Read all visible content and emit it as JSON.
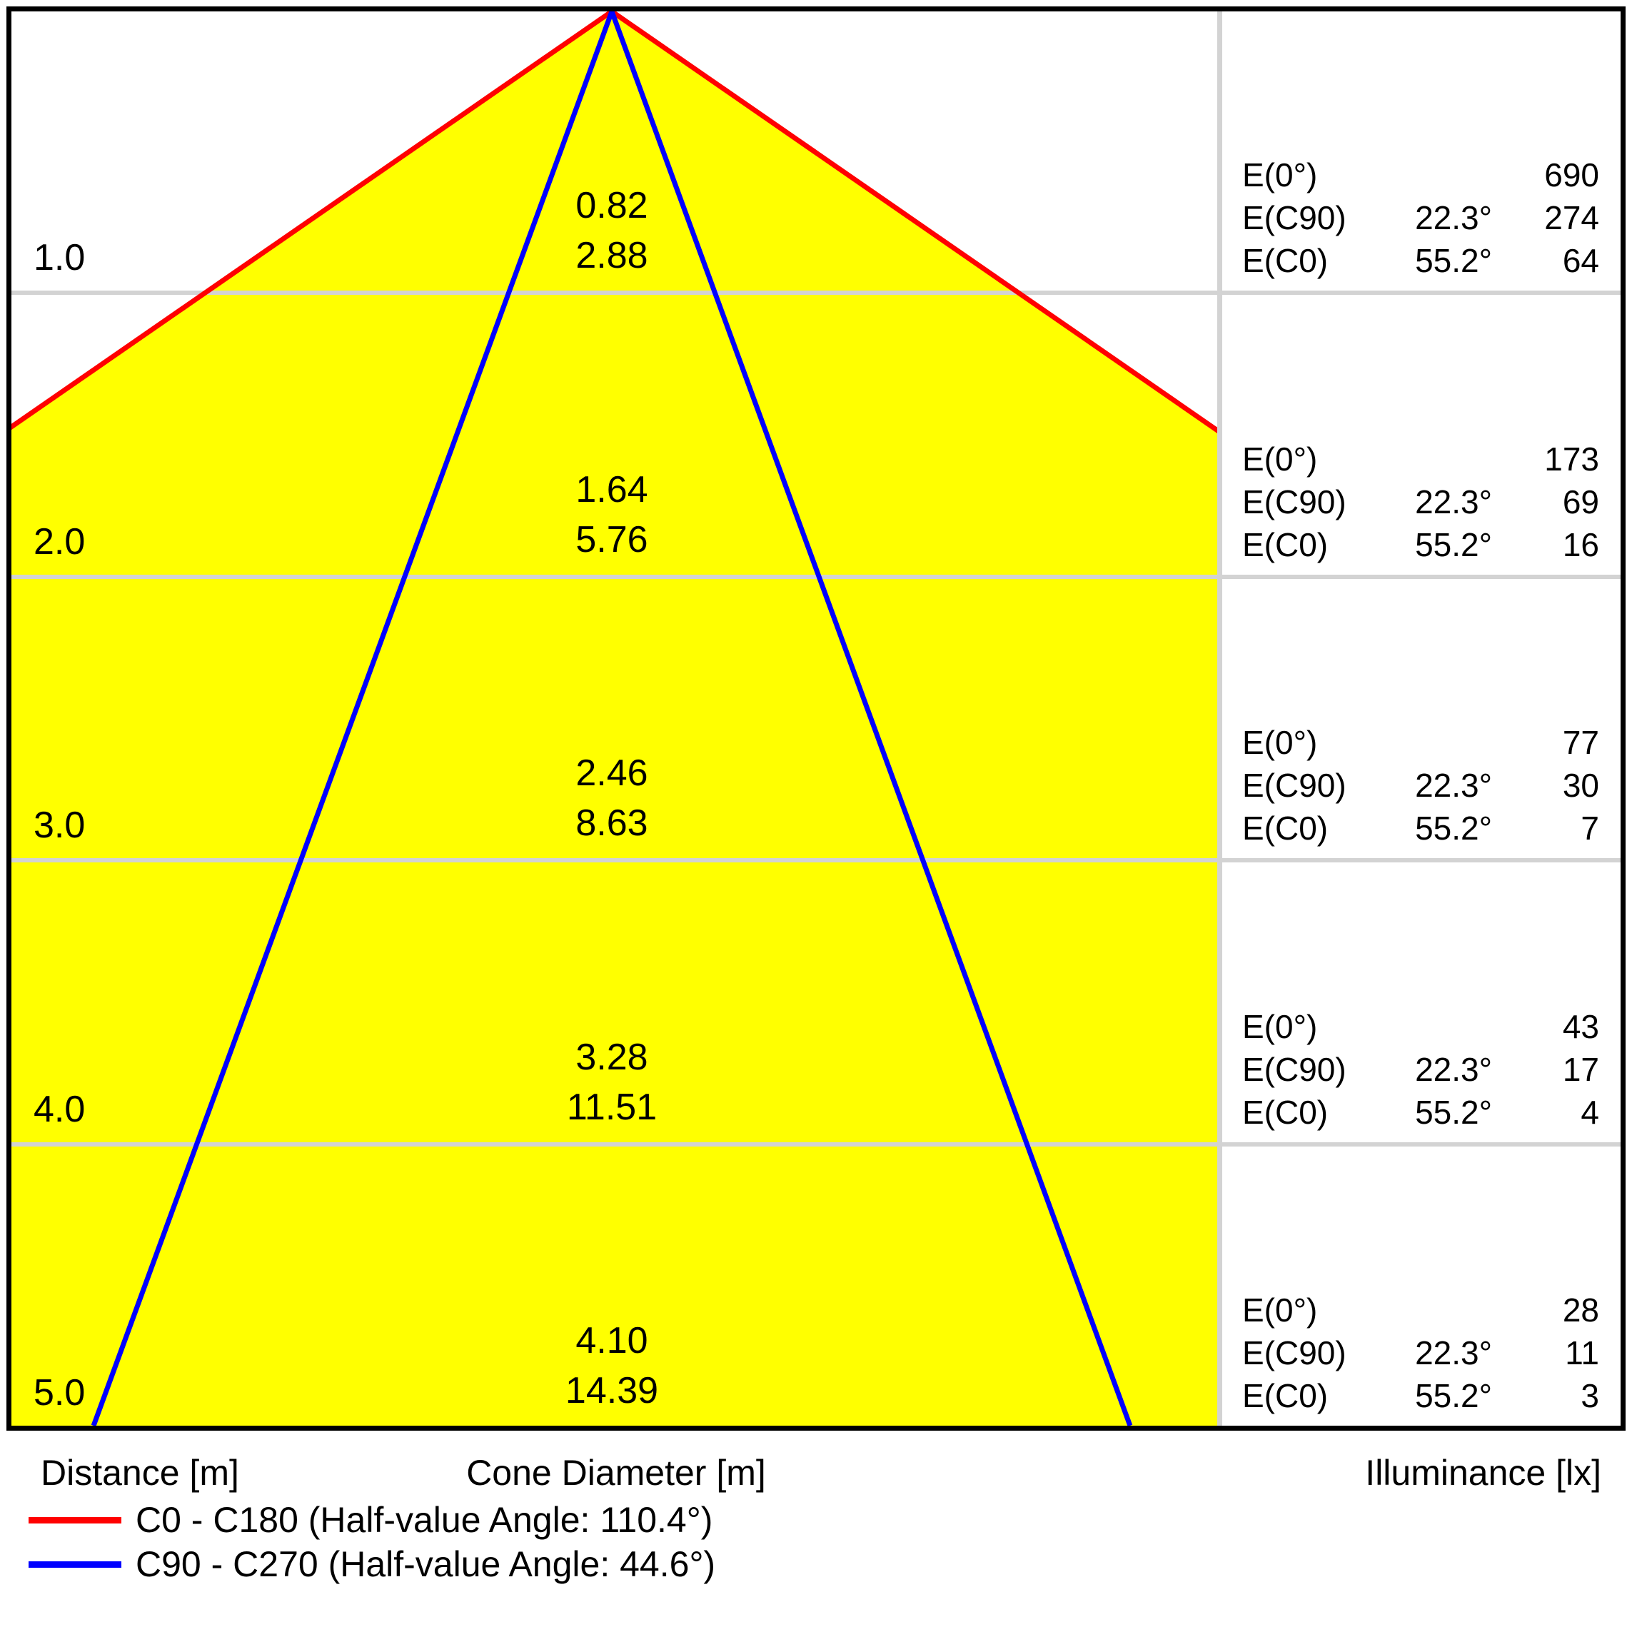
{
  "colors": {
    "cone_fill": "#ffff00",
    "c0_line": "#ff0000",
    "c90_line": "#0000ff",
    "gridline": "#d3d3d3",
    "border": "#000000"
  },
  "labels": {
    "distance_axis": "Distance [m]",
    "cone_axis": "Cone Diameter [m]",
    "illuminance_axis": "Illuminance [lx]",
    "e0": "E(0°)",
    "ec90": "E(C90)",
    "ec0": "E(C0)"
  },
  "legend": [
    {
      "color": "#ff0000",
      "label": "C0 - C180 (Half-value Angle: 110.4°)"
    },
    {
      "color": "#0000ff",
      "label": "C90 - C270 (Half-value Angle: 44.6°)"
    }
  ],
  "chart_data": {
    "type": "area",
    "description": "Luminaire light cone diagram: cone diameter and illuminance versus distance",
    "distances_m": [
      1.0,
      2.0,
      3.0,
      4.0,
      5.0
    ],
    "cone_diameter_c90_m": [
      0.82,
      1.64,
      2.46,
      3.28,
      4.1
    ],
    "cone_diameter_c0_m": [
      2.88,
      5.76,
      8.63,
      11.51,
      14.39
    ],
    "illuminance_e0_lx": [
      690,
      173,
      77,
      43,
      28
    ],
    "illuminance_ec90_lx": [
      274,
      69,
      30,
      17,
      11
    ],
    "illuminance_ec0_lx": [
      64,
      16,
      7,
      4,
      3
    ],
    "ec90_beam_angle": "22.3°",
    "ec0_beam_angle": "55.2°",
    "half_value_angle_c0_c180_deg": 110.4,
    "half_value_angle_c90_c270_deg": 44.6,
    "ylim_distance_m": [
      0,
      5
    ],
    "grid": true,
    "legend_position": "bottom-left",
    "rows": [
      {
        "distance": "1.0",
        "cone_c90": "0.82",
        "cone_c0": "2.88",
        "e0": "690",
        "ec90_angle": "22.3°",
        "ec90": "274",
        "ec0_angle": "55.2°",
        "ec0": "64"
      },
      {
        "distance": "2.0",
        "cone_c90": "1.64",
        "cone_c0": "5.76",
        "e0": "173",
        "ec90_angle": "22.3°",
        "ec90": "69",
        "ec0_angle": "55.2°",
        "ec0": "16"
      },
      {
        "distance": "3.0",
        "cone_c90": "2.46",
        "cone_c0": "8.63",
        "e0": "77",
        "ec90_angle": "22.3°",
        "ec90": "30",
        "ec0_angle": "55.2°",
        "ec0": "7"
      },
      {
        "distance": "4.0",
        "cone_c90": "3.28",
        "cone_c0": "11.51",
        "e0": "43",
        "ec90_angle": "22.3°",
        "ec90": "17",
        "ec0_angle": "55.2°",
        "ec0": "4"
      },
      {
        "distance": "5.0",
        "cone_c90": "4.10",
        "cone_c0": "14.39",
        "e0": "28",
        "ec90_angle": "22.3°",
        "ec90": "11",
        "ec0_angle": "55.2°",
        "ec0": "3"
      }
    ]
  }
}
